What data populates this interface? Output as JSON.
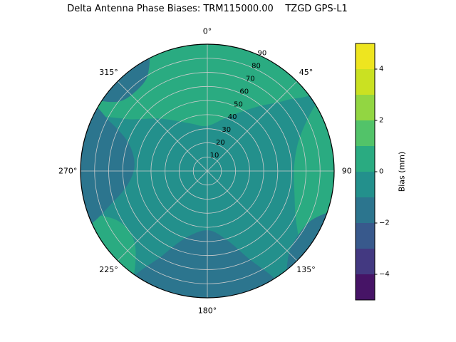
{
  "chart_data": {
    "type": "polar_contour_filled",
    "title": "Delta Antenna Phase Biases: TRM115000.00    TZGD GPS-L1",
    "polar_axis": {
      "theta_ticks": [
        {
          "deg": 0,
          "label": "0°"
        },
        {
          "deg": 45,
          "label": "45°"
        },
        {
          "deg": 90,
          "label": "90"
        },
        {
          "deg": 135,
          "label": "135°"
        },
        {
          "deg": 180,
          "label": "180°"
        },
        {
          "deg": 225,
          "label": "225°"
        },
        {
          "deg": 270,
          "label": "270°"
        },
        {
          "deg": 315,
          "label": "315°"
        }
      ],
      "r_ticks": [
        10,
        20,
        30,
        40,
        50,
        60,
        70,
        80,
        90
      ],
      "r_max": 90,
      "r_label_angle_deg": 25,
      "grid_color": "#cccccc",
      "outline_color": "#000000"
    },
    "levels": [
      -5,
      -4,
      -3,
      -2,
      -1,
      0,
      1,
      2,
      3,
      4,
      5
    ],
    "level_colors": [
      "#461466",
      "#433981",
      "#38598c",
      "#2c758e",
      "#23908c",
      "#2aab81",
      "#52c369",
      "#92d642",
      "#cae122",
      "#eee51f"
    ],
    "field": {
      "description": "Bias field is near 0 mm everywhere: mostly in the -1..0 band, with 0..1 patches (top-left, right, lower-left) and -2..-1 patches (bottom, left, rim slivers).",
      "base_band": "[-1,0] mm",
      "base_color_index": 4,
      "regions": [
        {
          "band": "[0,1] mm",
          "color_index": 5,
          "points_theta_r": [
            [
              298,
              95
            ],
            [
              302,
              70
            ],
            [
              318,
              50
            ],
            [
              340,
              36
            ],
            [
              0,
              32
            ],
            [
              22,
              42
            ],
            [
              38,
              58
            ],
            [
              48,
              75
            ],
            [
              52,
              95
            ],
            [
              20,
              97
            ],
            [
              350,
              98
            ],
            [
              320,
              97
            ]
          ]
        },
        {
          "band": "[0,1] mm",
          "color_index": 5,
          "points_theta_r": [
            [
              58,
              95
            ],
            [
              68,
              72
            ],
            [
              85,
              62
            ],
            [
              105,
              64
            ],
            [
              122,
              75
            ],
            [
              132,
              95
            ],
            [
              110,
              98
            ],
            [
              88,
              98
            ],
            [
              70,
              97
            ]
          ]
        },
        {
          "band": "[0,1] mm",
          "color_index": 5,
          "points_theta_r": [
            [
              215,
              95
            ],
            [
              222,
              76
            ],
            [
              233,
              70
            ],
            [
              244,
              76
            ],
            [
              250,
              95
            ],
            [
              238,
              98
            ],
            [
              226,
              98
            ]
          ]
        },
        {
          "band": "[-2,-1] mm",
          "color_index": 3,
          "points_theta_r": [
            [
              148,
              95
            ],
            [
              155,
              68
            ],
            [
              165,
              50
            ],
            [
              180,
              42
            ],
            [
              198,
              50
            ],
            [
              208,
              68
            ],
            [
              214,
              95
            ],
            [
              195,
              98
            ],
            [
              178,
              99
            ],
            [
              160,
              98
            ]
          ]
        },
        {
          "band": "[-2,-1] mm",
          "color_index": 3,
          "points_theta_r": [
            [
              246,
              95
            ],
            [
              252,
              70
            ],
            [
              262,
              56
            ],
            [
              276,
              52
            ],
            [
              290,
              60
            ],
            [
              297,
              78
            ],
            [
              299,
              95
            ],
            [
              282,
              98
            ],
            [
              262,
              98
            ]
          ]
        },
        {
          "band": "[-2,-1] mm",
          "color_index": 3,
          "points_theta_r": [
            [
              303,
              95
            ],
            [
              308,
              80
            ],
            [
              318,
              76
            ],
            [
              328,
              80
            ],
            [
              333,
              95
            ],
            [
              320,
              98
            ],
            [
              310,
              98
            ]
          ]
        },
        {
          "band": "[-2,-1] mm",
          "color_index": 3,
          "points_theta_r": [
            [
              108,
              95
            ],
            [
              115,
              82
            ],
            [
              126,
              79
            ],
            [
              136,
              83
            ],
            [
              142,
              95
            ],
            [
              128,
              98
            ],
            [
              116,
              98
            ]
          ]
        }
      ]
    },
    "colorbar": {
      "label": "Bias (mm)",
      "min": -5,
      "max": 5,
      "ticks": [
        {
          "value": -4,
          "label": "−4"
        },
        {
          "value": -2,
          "label": "−2"
        },
        {
          "value": 0,
          "label": "0"
        },
        {
          "value": 2,
          "label": "2"
        },
        {
          "value": 4,
          "label": "4"
        }
      ]
    }
  }
}
